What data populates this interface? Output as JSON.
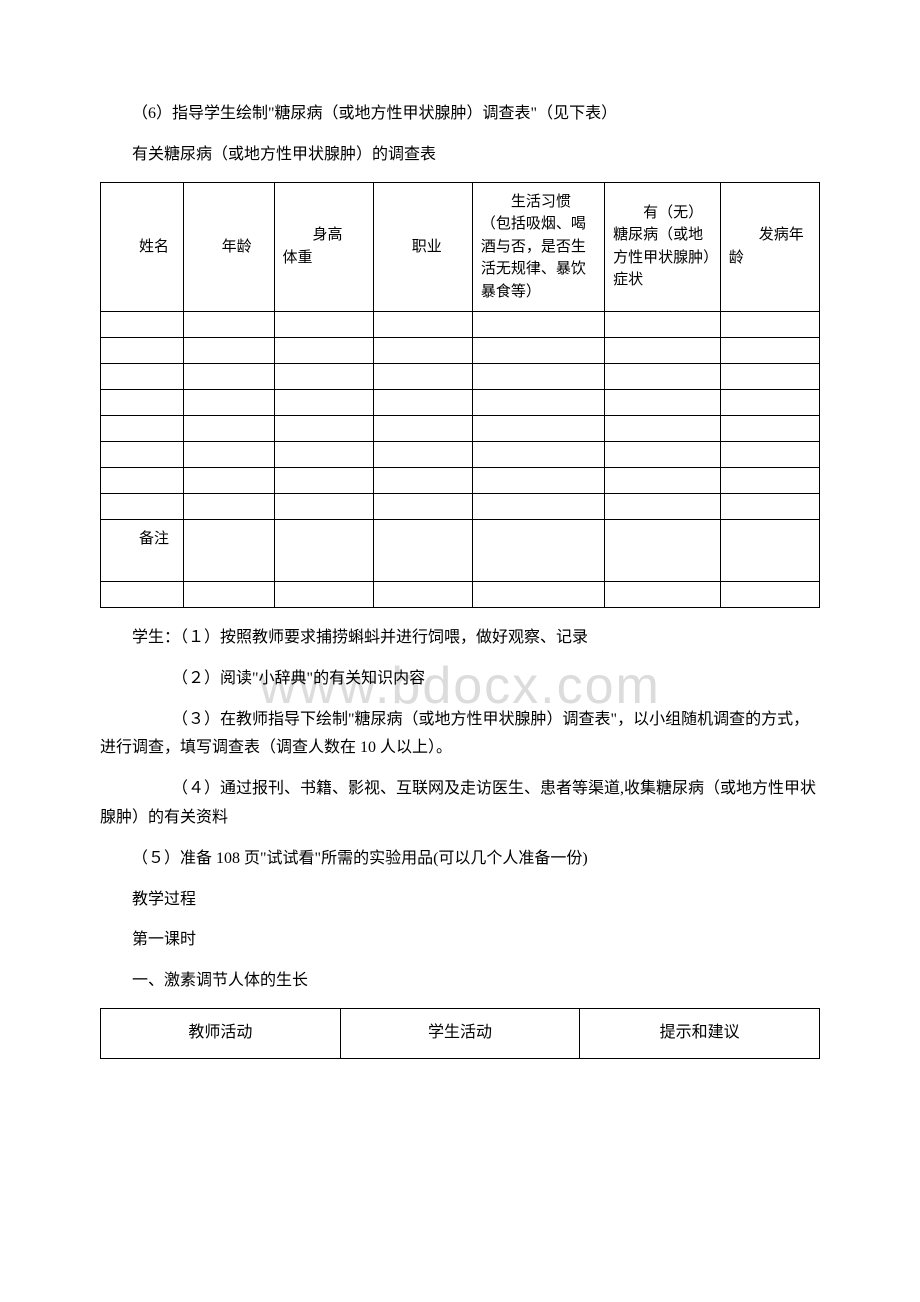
{
  "intro": {
    "line1": "（6）指导学生绘制\"糖尿病（或地方性甲状腺肿）调查表\"（见下表）",
    "line2": "有关糖尿病（或地方性甲状腺肿）的调查表"
  },
  "surveyTable": {
    "headers": {
      "name": "　　姓名",
      "age": "　　年龄",
      "heightWeight": "　　身高　　体重",
      "job": "　　职业",
      "habit": "　　生活习惯（包括吸烟、喝酒与否，是否生活无规律、暴饮暴食等）",
      "symptom": "　　有（无）糖尿病（或地方性甲状腺肿）症状",
      "onsetAge": "　　发病年龄"
    },
    "remarkLabel": "　　备注"
  },
  "paragraphs": {
    "p1": "学生：（１）按照教师要求捕捞蝌蚪并进行饲喂，做好观察、记录",
    "p2": "（２）阅读\"小辞典\"的有关知识内容",
    "p3": "（３）在教师指导下绘制\"糖尿病（或地方性甲状腺肿）调查表\"，以小组随机调查的方式，进行调查，填写调查表（调查人数在 10 人以上）。",
    "p4": "（４）通过报刊、书籍、影视、互联网及走访医生、患者等渠道,收集糖尿病（或地方性甲状腺肿）的有关资料",
    "p5": "（５）准备 108 页\"试试看\"所需的实验用品(可以几个人准备一份)",
    "p6": "教学过程",
    "p7": " 第一课时",
    "p8": "一、激素调节人体的生长"
  },
  "footerTable": {
    "col1": "教师活动",
    "col2": "学生活动",
    "col3": "提示和建议"
  },
  "watermark": "www.bdocx.com"
}
